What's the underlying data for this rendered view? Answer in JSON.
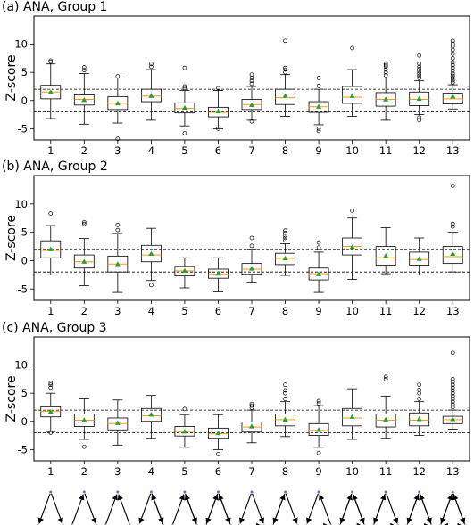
{
  "chart_data": [
    {
      "type": "box",
      "title": "(a) ANA, Group 1",
      "ylabel": "Z-score",
      "categories": [
        "1",
        "2",
        "3",
        "4",
        "5",
        "6",
        "7",
        "8",
        "9",
        "10",
        "11",
        "12",
        "13"
      ],
      "ylim": [
        -7,
        15
      ],
      "yticks": [
        -5,
        0,
        5,
        10
      ],
      "reference_lines": [
        2,
        -2
      ],
      "boxes": [
        {
          "q1": 0.3,
          "median": 1.5,
          "q3": 2.7,
          "mean": 1.5,
          "whisker_low": -3.2,
          "whisker_high": 6.5,
          "outliers": [
            7.1,
            6.9
          ]
        },
        {
          "q1": -0.8,
          "median": 0.2,
          "q3": 1.0,
          "mean": 0.1,
          "whisker_low": -4.2,
          "whisker_high": 4.8,
          "outliers": [
            5.9,
            5.4
          ]
        },
        {
          "q1": -1.6,
          "median": -0.5,
          "q3": 0.7,
          "mean": -0.5,
          "whisker_low": -4.0,
          "whisker_high": 4.0,
          "outliers": [
            4.3,
            -6.8
          ]
        },
        {
          "q1": -0.2,
          "median": 0.8,
          "q3": 2.0,
          "mean": 0.8,
          "whisker_low": -3.5,
          "whisker_high": 5.5,
          "outliers": [
            6.5,
            6.0
          ]
        },
        {
          "q1": -2.2,
          "median": -1.4,
          "q3": -0.4,
          "mean": -1.3,
          "whisker_low": -4.5,
          "whisker_high": 1.8,
          "outliers": [
            2.2,
            2.5,
            5.8,
            -5.8
          ]
        },
        {
          "q1": -2.9,
          "median": -2.1,
          "q3": -1.2,
          "mean": -1.9,
          "whisker_low": -5.0,
          "whisker_high": 1.8,
          "outliers": [
            2.2,
            -5.0
          ]
        },
        {
          "q1": -1.6,
          "median": -0.7,
          "q3": 0.2,
          "mean": -0.8,
          "whisker_low": -3.5,
          "whisker_high": 2.5,
          "outliers": [
            3.0,
            3.5,
            4.0,
            4.6,
            -3.7
          ]
        },
        {
          "q1": -0.7,
          "median": 0.5,
          "q3": 2.0,
          "mean": 0.8,
          "whisker_low": -2.8,
          "whisker_high": 4.6,
          "outliers": [
            5.0,
            5.5,
            5.8,
            10.6
          ]
        },
        {
          "q1": -2.1,
          "median": -1.1,
          "q3": -0.2,
          "mean": -1.1,
          "whisker_low": -4.3,
          "whisker_high": 2.0,
          "outliers": [
            2.6,
            4.0,
            -5.0,
            -5.4
          ]
        },
        {
          "q1": -0.5,
          "median": 0.6,
          "q3": 2.5,
          "mean": 0.8,
          "whisker_low": -2.8,
          "whisker_high": 5.5,
          "outliers": [
            9.3
          ]
        },
        {
          "q1": -1.0,
          "median": 0.2,
          "q3": 1.4,
          "mean": 0.2,
          "whisker_low": -3.5,
          "whisker_high": 4.0,
          "outliers": [
            4.5,
            5.0,
            5.5,
            6.0,
            6.3,
            6.6
          ]
        },
        {
          "q1": -0.9,
          "median": 0.2,
          "q3": 1.5,
          "mean": 0.3,
          "whisker_low": -2.5,
          "whisker_high": 3.5,
          "outliers": [
            4.0,
            4.4,
            4.8,
            5.2,
            5.6,
            6.0,
            6.5,
            8.0,
            -3.0,
            -3.5
          ]
        },
        {
          "q1": -0.6,
          "median": 0.3,
          "q3": 1.3,
          "mean": 0.7,
          "whisker_low": -1.5,
          "whisker_high": 2.8,
          "outliers": [
            3.2,
            3.6,
            4.0,
            4.4,
            4.8,
            5.3,
            5.8,
            6.3,
            6.8,
            7.5,
            8.3,
            9.0,
            9.6,
            10.1,
            10.6
          ]
        }
      ]
    },
    {
      "type": "box",
      "title": "(b) ANA, Group 2",
      "ylabel": "Z-score",
      "categories": [
        "1",
        "2",
        "3",
        "4",
        "5",
        "6",
        "7",
        "8",
        "9",
        "10",
        "11",
        "12",
        "13"
      ],
      "ylim": [
        -7,
        15
      ],
      "yticks": [
        -5,
        0,
        5,
        10
      ],
      "reference_lines": [
        2,
        -2
      ],
      "boxes": [
        {
          "q1": 0.5,
          "median": 1.8,
          "q3": 3.5,
          "mean": 2.0,
          "whisker_low": -2.5,
          "whisker_high": 6.2,
          "outliers": [
            8.3
          ]
        },
        {
          "q1": -1.3,
          "median": -0.2,
          "q3": 1.0,
          "mean": -0.2,
          "whisker_low": -4.4,
          "whisker_high": 3.9,
          "outliers": [
            6.5,
            6.8
          ]
        },
        {
          "q1": -2.0,
          "median": -0.6,
          "q3": 0.8,
          "mean": -0.6,
          "whisker_low": -5.6,
          "whisker_high": 4.8,
          "outliers": [
            5.4,
            6.3
          ]
        },
        {
          "q1": -0.2,
          "median": 1.0,
          "q3": 2.7,
          "mean": 1.2,
          "whisker_low": -3.5,
          "whisker_high": 5.7,
          "outliers": [
            -4.3
          ]
        },
        {
          "q1": -2.7,
          "median": -1.8,
          "q3": -1.0,
          "mean": -1.8,
          "whisker_low": -4.8,
          "whisker_high": 0.5,
          "outliers": []
        },
        {
          "q1": -3.1,
          "median": -2.4,
          "q3": -1.5,
          "mean": -2.3,
          "whisker_low": -5.5,
          "whisker_high": 0.5,
          "outliers": []
        },
        {
          "q1": -2.4,
          "median": -1.5,
          "q3": -0.5,
          "mean": -1.4,
          "whisker_low": -3.8,
          "whisker_high": 2.0,
          "outliers": [
            2.6,
            4.0
          ]
        },
        {
          "q1": -0.7,
          "median": 0.4,
          "q3": 1.3,
          "mean": 0.4,
          "whisker_low": -2.6,
          "whisker_high": 3.0,
          "outliers": [
            3.6,
            4.0,
            4.4,
            4.9,
            5.3
          ]
        },
        {
          "q1": -3.4,
          "median": -2.3,
          "q3": -1.3,
          "mean": -2.4,
          "whisker_low": -5.6,
          "whisker_high": 1.5,
          "outliers": [
            2.3,
            3.2
          ]
        },
        {
          "q1": 1.0,
          "median": 2.5,
          "q3": 4.0,
          "mean": 2.4,
          "whisker_low": -3.3,
          "whisker_high": 7.5,
          "outliers": [
            8.8
          ]
        },
        {
          "q1": -0.8,
          "median": 0.5,
          "q3": 2.5,
          "mean": 0.8,
          "whisker_low": -2.3,
          "whisker_high": 5.8,
          "outliers": []
        },
        {
          "q1": -0.8,
          "median": 0.2,
          "q3": 1.5,
          "mean": 0.3,
          "whisker_low": -2.5,
          "whisker_high": 4.0,
          "outliers": []
        },
        {
          "q1": -0.5,
          "median": 0.7,
          "q3": 2.5,
          "mean": 1.2,
          "whisker_low": -2.0,
          "whisker_high": 5.0,
          "outliers": [
            6.0,
            6.5,
            13.2
          ]
        }
      ]
    },
    {
      "type": "box",
      "title": "(c) ANA, Group 3",
      "ylabel": "Z-score",
      "categories": [
        "1",
        "2",
        "3",
        "4",
        "5",
        "6",
        "7",
        "8",
        "9",
        "10",
        "11",
        "12",
        "13"
      ],
      "ylim": [
        -7,
        15
      ],
      "yticks": [
        -5,
        0,
        5,
        10
      ],
      "reference_lines": [
        2,
        -2
      ],
      "boxes": [
        {
          "q1": 0.8,
          "median": 1.8,
          "q3": 2.6,
          "mean": 1.7,
          "whisker_low": -1.8,
          "whisker_high": 5.0,
          "outliers": [
            6.0,
            6.5,
            6.8,
            -2.0
          ]
        },
        {
          "q1": -0.9,
          "median": 0.2,
          "q3": 1.3,
          "mean": 0.2,
          "whisker_low": -3.2,
          "whisker_high": 4.0,
          "outliers": [
            -4.5
          ]
        },
        {
          "q1": -1.5,
          "median": -0.4,
          "q3": 0.6,
          "mean": -0.3,
          "whisker_low": -4.2,
          "whisker_high": 3.8,
          "outliers": []
        },
        {
          "q1": 0.0,
          "median": 1.0,
          "q3": 2.3,
          "mean": 1.2,
          "whisker_low": -3.0,
          "whisker_high": 4.6,
          "outliers": []
        },
        {
          "q1": -2.6,
          "median": -1.8,
          "q3": -0.9,
          "mean": -1.8,
          "whisker_low": -4.6,
          "whisker_high": 1.2,
          "outliers": [
            2.2
          ]
        },
        {
          "q1": -3.0,
          "median": -2.2,
          "q3": -1.2,
          "mean": -2.1,
          "whisker_low": -5.0,
          "whisker_high": 1.2,
          "outliers": [
            -5.8
          ]
        },
        {
          "q1": -1.9,
          "median": -1.0,
          "q3": -0.1,
          "mean": -0.9,
          "whisker_low": -3.8,
          "whisker_high": 2.0,
          "outliers": [
            2.4,
            2.8,
            3.1
          ]
        },
        {
          "q1": -0.8,
          "median": 0.3,
          "q3": 1.3,
          "mean": 0.3,
          "whisker_low": -2.7,
          "whisker_high": 3.5,
          "outliers": [
            4.0,
            5.0,
            5.5,
            6.5
          ]
        },
        {
          "q1": -2.5,
          "median": -1.6,
          "q3": -0.4,
          "mean": -1.5,
          "whisker_low": -4.6,
          "whisker_high": 2.8,
          "outliers": [
            3.2,
            3.6,
            -5.6
          ]
        },
        {
          "q1": -0.8,
          "median": 0.6,
          "q3": 2.3,
          "mean": 0.8,
          "whisker_low": -3.2,
          "whisker_high": 5.8,
          "outliers": []
        },
        {
          "q1": -1.0,
          "median": 0.2,
          "q3": 1.3,
          "mean": 0.3,
          "whisker_low": -3.0,
          "whisker_high": 4.5,
          "outliers": [
            7.5,
            7.9
          ]
        },
        {
          "q1": -0.8,
          "median": 0.2,
          "q3": 1.5,
          "mean": 0.4,
          "whisker_low": -2.5,
          "whisker_high": 3.5,
          "outliers": [
            4.0,
            5.0,
            5.6,
            6.5
          ]
        },
        {
          "q1": -0.4,
          "median": 0.3,
          "q3": 0.9,
          "mean": 0.4,
          "whisker_low": -1.4,
          "whisker_high": 2.0,
          "outliers": [
            2.5,
            3.0,
            3.5,
            4.0,
            4.5,
            5.0,
            5.5,
            6.0,
            6.5,
            7.0,
            7.5,
            12.2
          ]
        }
      ]
    }
  ],
  "colors": {
    "median": "#f39c12",
    "mean": "#2ca02c",
    "box": "#000000",
    "refline": "#000000",
    "motif_node": "#6b6bcc"
  },
  "motif_icons": [
    "motif-1-icon",
    "motif-2-icon",
    "motif-3-icon",
    "motif-4-icon",
    "motif-5-icon",
    "motif-6-icon",
    "motif-7-icon",
    "motif-8-icon",
    "motif-9-icon",
    "motif-10-icon",
    "motif-11-icon",
    "motif-12-icon",
    "motif-13-icon"
  ]
}
